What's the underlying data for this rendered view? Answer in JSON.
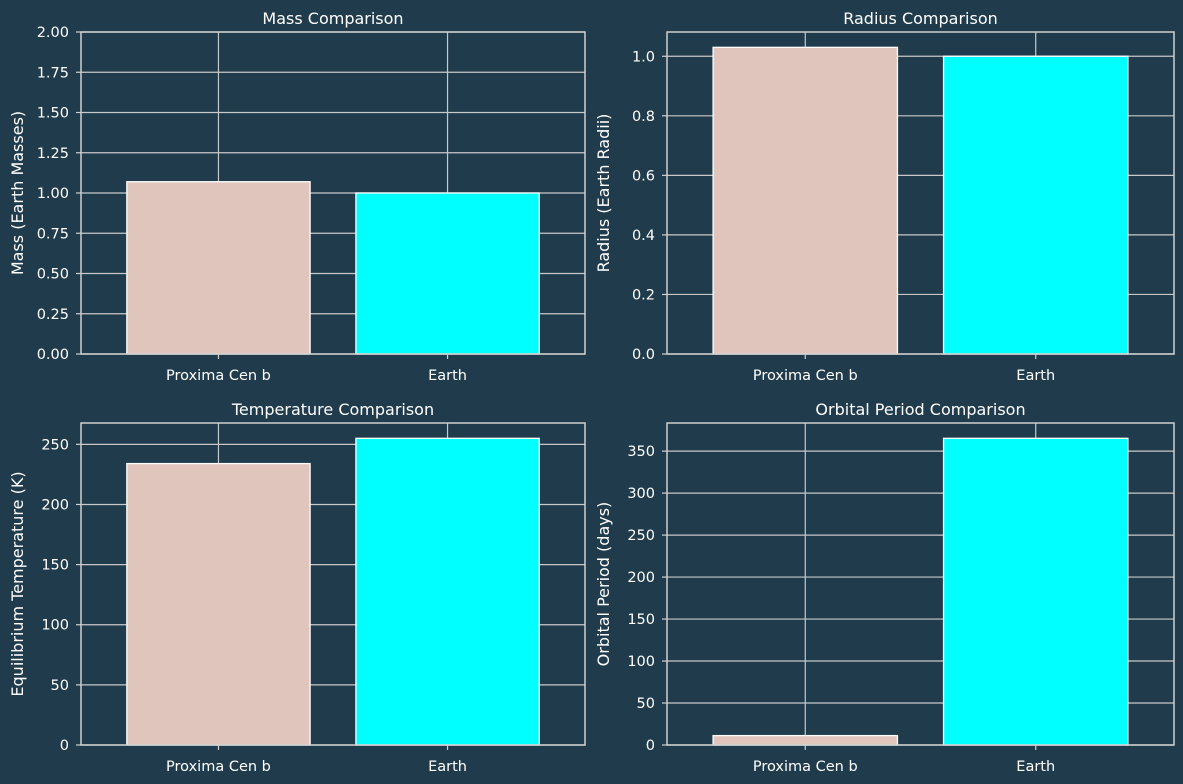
{
  "colors": {
    "background": "#203c4c",
    "proxima": "#dfc5bb",
    "earth": "#00ffff"
  },
  "chart_data": [
    {
      "type": "bar",
      "title": "Mass Comparison",
      "ylabel": "Mass (Earth Masses)",
      "categories": [
        "Proxima Cen b",
        "Earth"
      ],
      "values": [
        1.07,
        1.0
      ],
      "ylim": [
        0,
        2.0
      ],
      "yticks": [
        "0.00",
        "0.25",
        "0.50",
        "0.75",
        "1.00",
        "1.25",
        "1.50",
        "1.75",
        "2.00"
      ],
      "ytick_values": [
        0,
        0.25,
        0.5,
        0.75,
        1.0,
        1.25,
        1.5,
        1.75,
        2.0
      ],
      "grid": true
    },
    {
      "type": "bar",
      "title": "Radius Comparison",
      "ylabel": "Radius (Earth Radii)",
      "categories": [
        "Proxima Cen b",
        "Earth"
      ],
      "values": [
        1.03,
        1.0
      ],
      "ylim": [
        0,
        1.0815
      ],
      "yticks": [
        "0.0",
        "0.2",
        "0.4",
        "0.6",
        "0.8",
        "1.0"
      ],
      "ytick_values": [
        0,
        0.2,
        0.4,
        0.6,
        0.8,
        1.0
      ],
      "grid": true
    },
    {
      "type": "bar",
      "title": "Temperature Comparison",
      "ylabel": "Equilibrium Temperature (K)",
      "categories": [
        "Proxima Cen b",
        "Earth"
      ],
      "values": [
        234,
        255
      ],
      "ylim": [
        0,
        267.75
      ],
      "yticks": [
        "0",
        "50",
        "100",
        "150",
        "200",
        "250"
      ],
      "ytick_values": [
        0,
        50,
        100,
        150,
        200,
        250
      ],
      "grid": true
    },
    {
      "type": "bar",
      "title": "Orbital Period Comparison",
      "ylabel": "Orbital Period (days)",
      "categories": [
        "Proxima Cen b",
        "Earth"
      ],
      "values": [
        11.2,
        365.25
      ],
      "ylim": [
        0,
        383.5
      ],
      "yticks": [
        "0",
        "50",
        "100",
        "150",
        "200",
        "250",
        "300",
        "350"
      ],
      "ytick_values": [
        0,
        50,
        100,
        150,
        200,
        250,
        300,
        350
      ],
      "grid": true
    }
  ]
}
